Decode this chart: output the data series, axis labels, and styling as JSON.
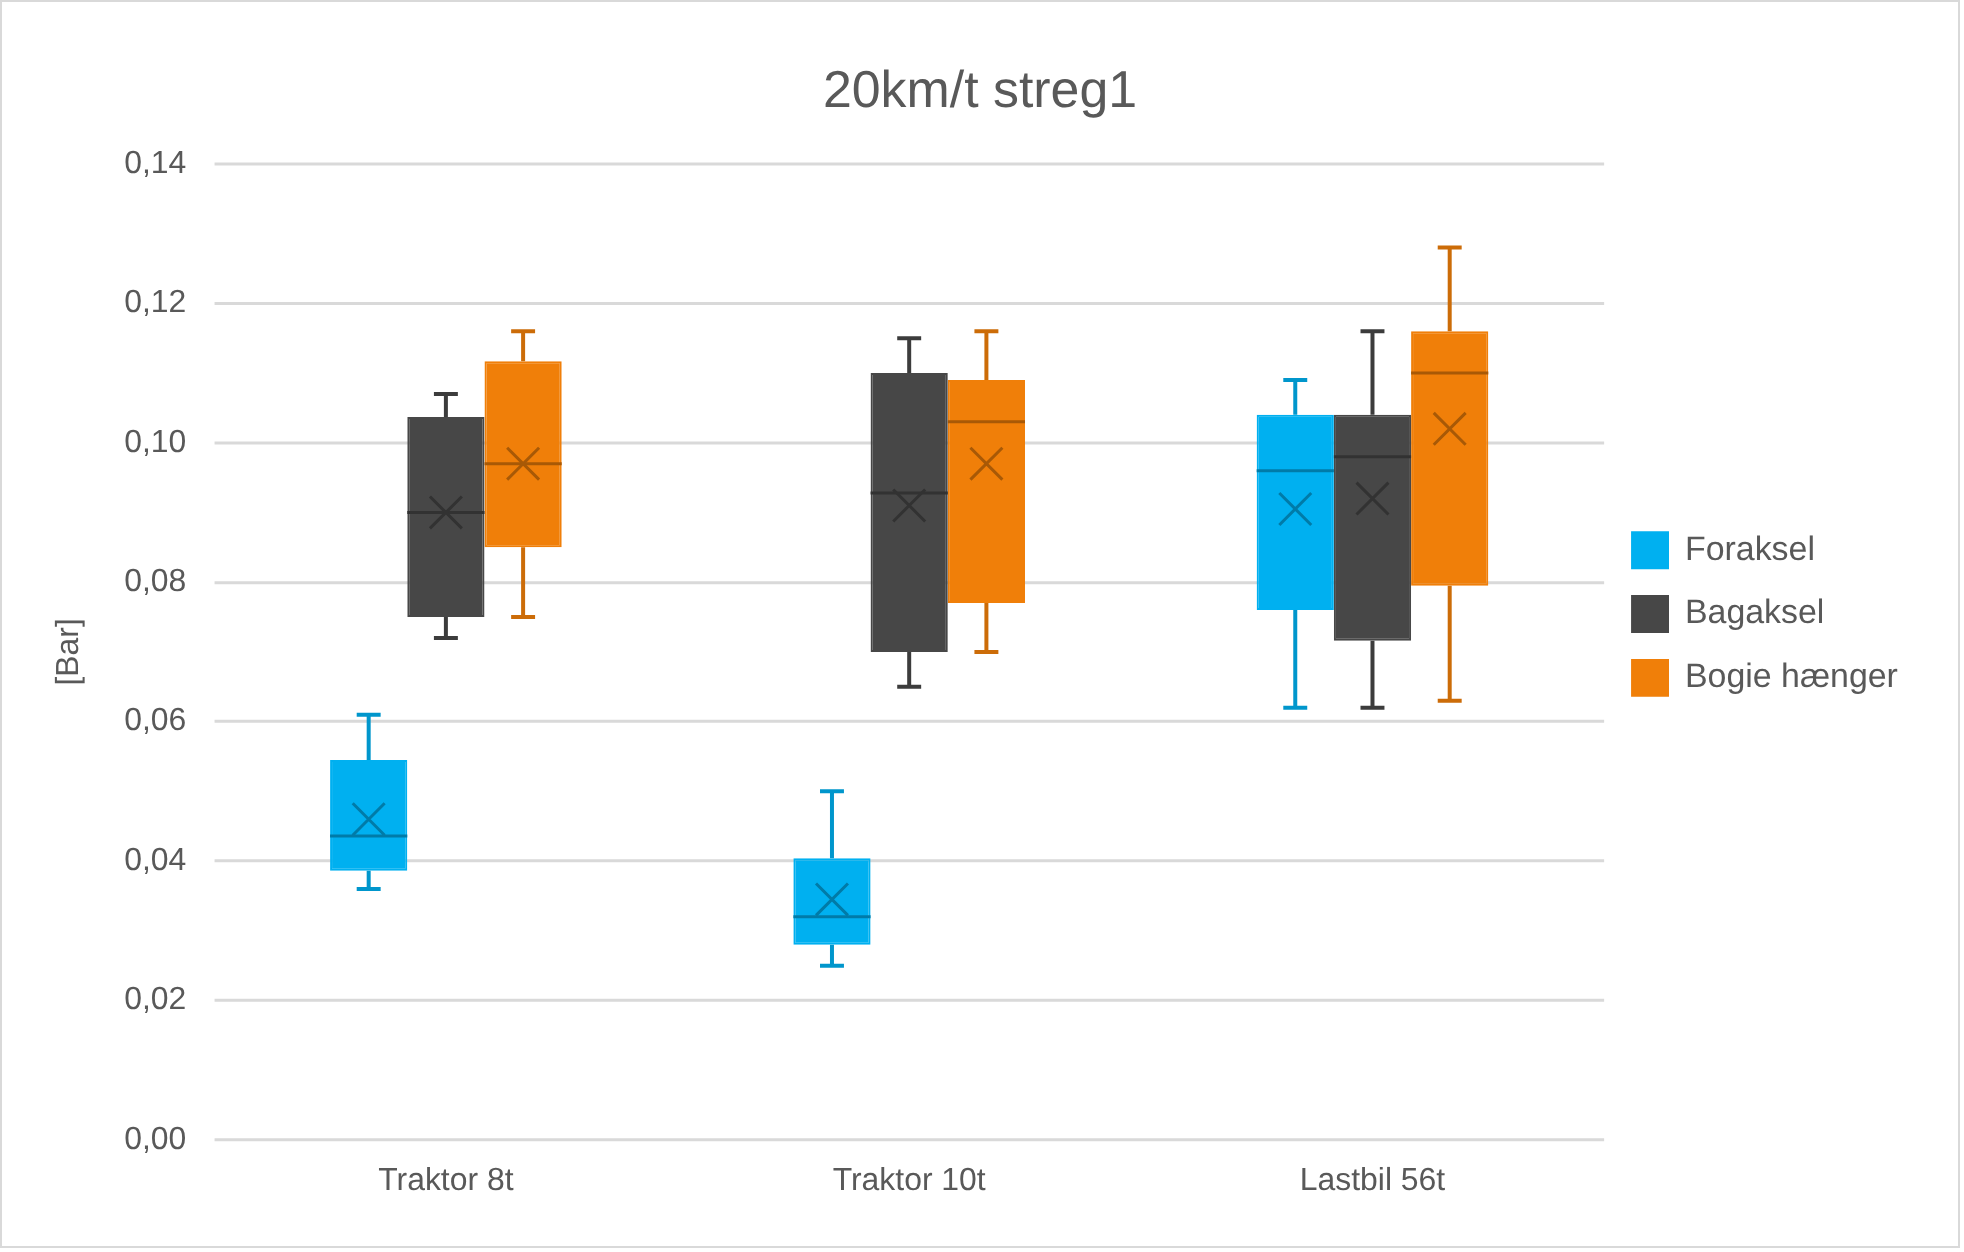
{
  "chart_data": {
    "type": "box",
    "title": "20km/t streg1",
    "ylabel": "[Bar]",
    "categories": [
      "Traktor 8t",
      "Traktor 10t",
      "Lastbil 56t"
    ],
    "series": [
      {
        "name": "Foraksel",
        "color": "#00b0f0",
        "boxes": [
          {
            "low": 0.036,
            "q1": 0.0386,
            "median": 0.0436,
            "q3": 0.0545,
            "high": 0.061,
            "mean": 0.046
          },
          {
            "low": 0.025,
            "q1": 0.028,
            "median": 0.032,
            "q3": 0.0404,
            "high": 0.05,
            "mean": 0.0345
          },
          {
            "low": 0.062,
            "q1": 0.076,
            "median": 0.096,
            "q3": 0.104,
            "high": 0.109,
            "mean": 0.0905
          }
        ]
      },
      {
        "name": "Bagaksel",
        "color": "#474747",
        "boxes": [
          {
            "low": 0.072,
            "q1": 0.075,
            "median": 0.09,
            "q3": 0.1037,
            "high": 0.107,
            "mean": 0.09
          },
          {
            "low": 0.065,
            "q1": 0.07,
            "median": 0.0928,
            "q3": 0.11,
            "high": 0.115,
            "mean": 0.091
          },
          {
            "low": 0.062,
            "q1": 0.0716,
            "median": 0.098,
            "q3": 0.104,
            "high": 0.116,
            "mean": 0.092
          }
        ]
      },
      {
        "name": "Bogie hænger",
        "color": "#f07f09",
        "boxes": [
          {
            "low": 0.075,
            "q1": 0.085,
            "median": 0.097,
            "q3": 0.1117,
            "high": 0.116,
            "mean": 0.097
          },
          {
            "low": 0.07,
            "q1": 0.077,
            "median": 0.103,
            "q3": 0.109,
            "high": 0.116,
            "mean": 0.097
          },
          {
            "low": 0.063,
            "q1": 0.0795,
            "median": 0.11,
            "q3": 0.116,
            "high": 0.128,
            "mean": 0.102
          }
        ]
      }
    ],
    "ylim": [
      0,
      0.14
    ],
    "yticks": [
      {
        "value": 0,
        "label": "0,00"
      },
      {
        "value": 0.02,
        "label": "0,02"
      },
      {
        "value": 0.04,
        "label": "0,04"
      },
      {
        "value": 0.06,
        "label": "0,06"
      },
      {
        "value": 0.08,
        "label": "0,08"
      },
      {
        "value": 0.1,
        "label": "0,10"
      },
      {
        "value": 0.12,
        "label": "0,12"
      },
      {
        "value": 0.14,
        "label": "0,14"
      }
    ],
    "grid": "y",
    "legend": "right"
  }
}
